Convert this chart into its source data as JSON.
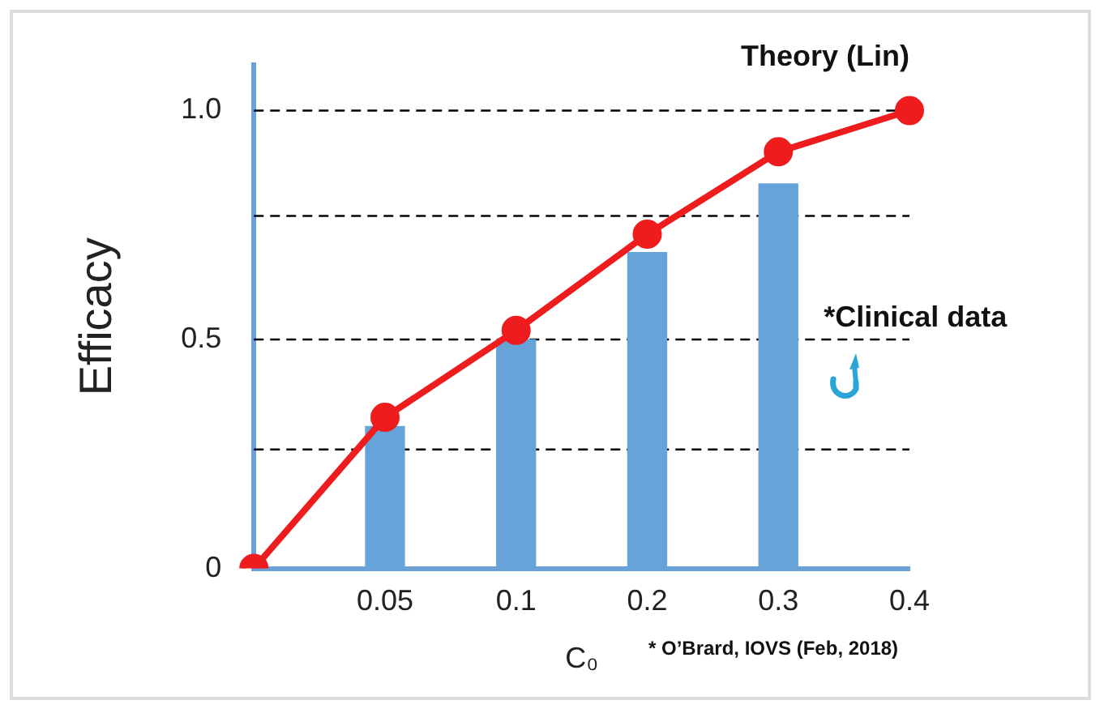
{
  "chart_data": {
    "type": "bar",
    "ylabel": "Efficacy",
    "xlabel": "C₀",
    "categories": [
      null,
      "0.05",
      "0.1",
      "0.2",
      "0.3",
      "0.4"
    ],
    "series": [
      {
        "name": "*Clinical data",
        "color": "#66a3d9",
        "values": [
          null,
          0.31,
          0.5,
          0.69,
          0.84,
          null
        ]
      },
      {
        "type": "line",
        "name": "Theory (Lin)",
        "color": "#ee1c1c",
        "values": [
          0,
          0.33,
          0.52,
          0.73,
          0.91,
          1.0
        ],
        "marker": "circle",
        "line_style": "solid"
      }
    ],
    "ylim": [
      0,
      1.1
    ],
    "yticks": [
      0,
      0.5,
      {
        "value": 1,
        "label": "1.0"
      }
    ],
    "ref_lines": [
      {
        "axis": "y",
        "value": 1,
        "color": "#000000",
        "line_style": "dashed"
      },
      {
        "axis": "y",
        "value": 0.77,
        "color": "#000000",
        "line_style": "dashed"
      },
      {
        "axis": "y",
        "value": 0.5,
        "color": "#000000",
        "line_style": "dashed"
      },
      {
        "axis": "y",
        "value": 0.26,
        "color": "#000000",
        "line_style": "dashed"
      }
    ],
    "grid": false,
    "legend": false,
    "annotations": [
      "* O’Brard, IOVS (Feb, 2018)"
    ]
  }
}
